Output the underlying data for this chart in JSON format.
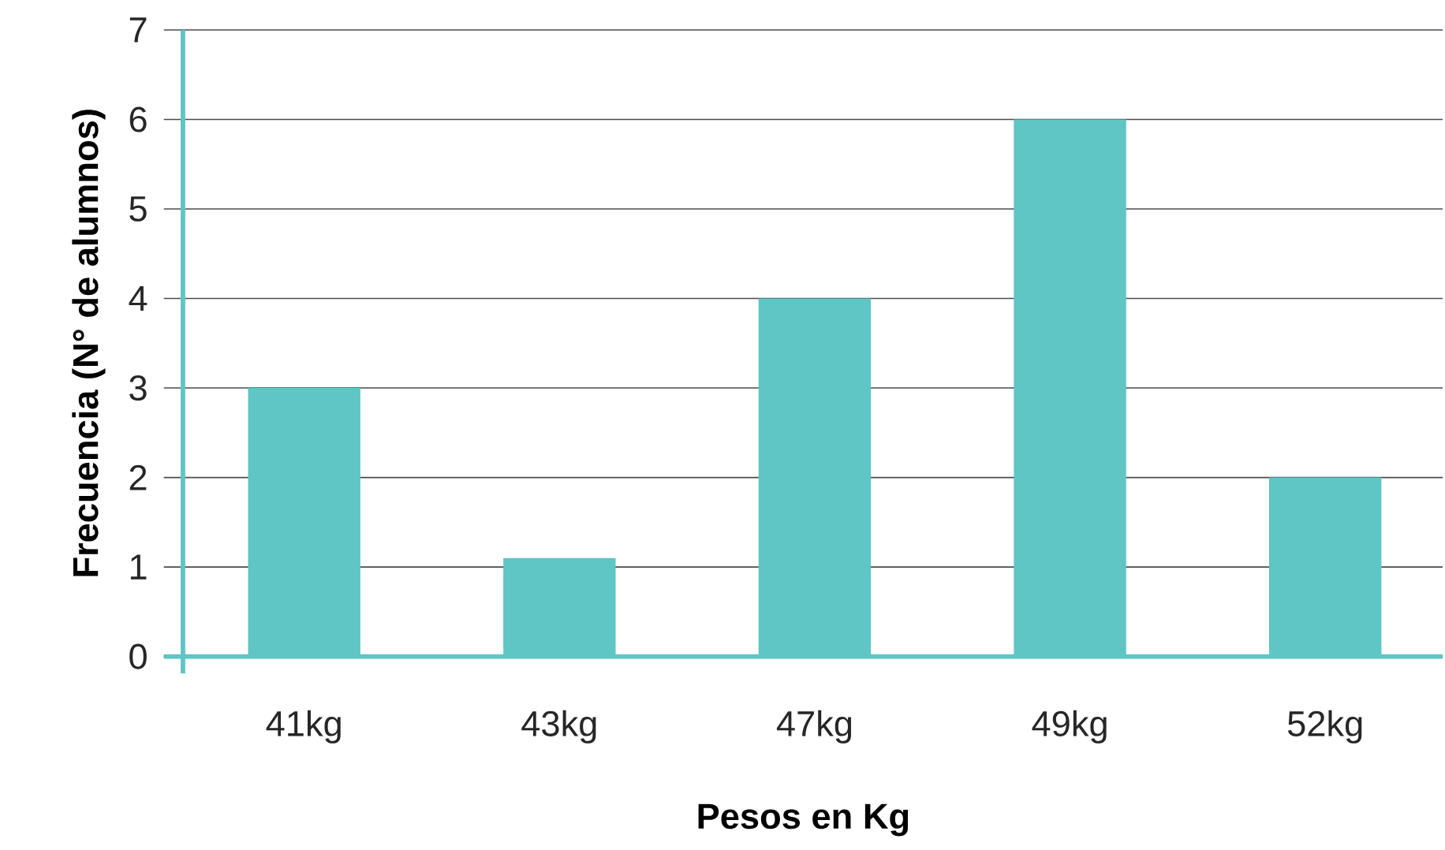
{
  "chart_data": {
    "type": "bar",
    "xlabel": "Pesos en Kg",
    "ylabel": "Frecuencia (N° de alumnos)",
    "categories": [
      "41kg",
      "43kg",
      "47kg",
      "49kg",
      "52kg"
    ],
    "values": [
      3,
      1.1,
      4,
      6,
      2
    ],
    "color": "#5fc5c5",
    "ylim": [
      0,
      7
    ],
    "yticks": [
      0,
      1,
      2,
      3,
      4,
      5,
      6,
      7
    ],
    "grid": "y"
  }
}
